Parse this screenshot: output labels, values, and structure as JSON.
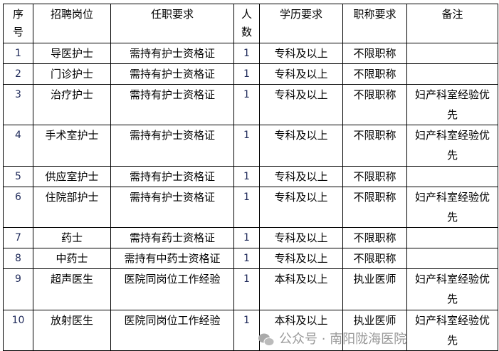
{
  "headers": [
    "序号",
    "招聘岗位",
    "任职要求",
    "人数",
    "学历要求",
    "职称要求",
    "备注"
  ],
  "rows": [
    {
      "no": "1",
      "post": "导医护士",
      "req": "需持有护士资格证",
      "count": "1",
      "edu": "专科及以上",
      "title": "不限职称",
      "note": ""
    },
    {
      "no": "2",
      "post": "门诊护士",
      "req": "需持有护士资格证",
      "count": "1",
      "edu": "专科及以上",
      "title": "不限职称",
      "note": ""
    },
    {
      "no": "3",
      "post": "治疗护士",
      "req": "需持有护士资格证",
      "count": "1",
      "edu": "专科及以上",
      "title": "不限职称",
      "note": "妇产科室经验优先"
    },
    {
      "no": "4",
      "post": "手术室护士",
      "req": "需持有护士资格证",
      "count": "1",
      "edu": "专科及以上",
      "title": "不限职称",
      "note": "妇产科室经验优先"
    },
    {
      "no": "5",
      "post": "供应室护士",
      "req": "需持有护士资格证",
      "count": "1",
      "edu": "专科及以上",
      "title": "不限职称",
      "note": ""
    },
    {
      "no": "6",
      "post": "住院部护士",
      "req": "需持有护士资格证",
      "count": "1",
      "edu": "专科及以上",
      "title": "不限职称",
      "note": "妇产科室经验优先"
    },
    {
      "no": "7",
      "post": "药士",
      "req": "需持有药士资格证",
      "count": "1",
      "edu": "专科及以上",
      "title": "不限职称",
      "note": ""
    },
    {
      "no": "8",
      "post": "中药士",
      "req": "需持有中药士资格证",
      "count": "1",
      "edu": "专科及以上",
      "title": "不限职称",
      "note": ""
    },
    {
      "no": "9",
      "post": "超声医生",
      "req": "医院同岗位工作经验",
      "count": "1",
      "edu": "本科及以上",
      "title": "执业医师",
      "note": "妇产科室经验优先"
    },
    {
      "no": "10",
      "post": "放射医生",
      "req": "医院同岗位工作经验",
      "count": "1",
      "edu": "本科及以上",
      "title": "执业医师",
      "note": "妇产科室经验优先"
    }
  ],
  "watermark": "公众号 · 南阳陇海医院"
}
